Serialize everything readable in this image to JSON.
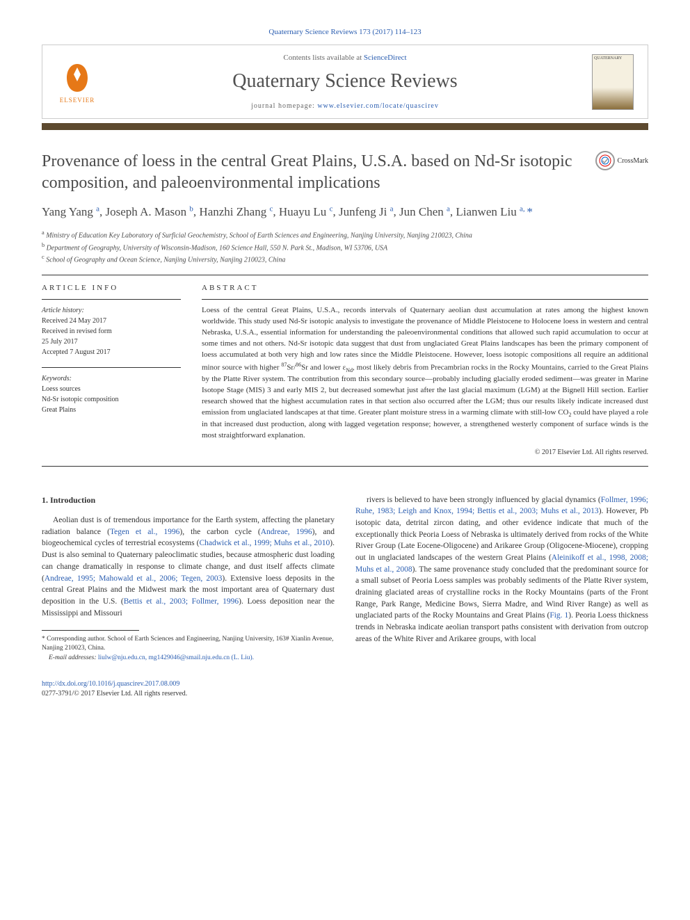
{
  "header": {
    "citation": "Quaternary Science Reviews 173 (2017) 114–123",
    "contents_prefix": "Contents lists available at ",
    "contents_link": "ScienceDirect",
    "journal_name": "Quaternary Science Reviews",
    "homepage_prefix": "journal homepage: ",
    "homepage_url": "www.elsevier.com/locate/quascirev",
    "publisher": "ELSEVIER",
    "cover_text": "QUATERNARY"
  },
  "colors": {
    "link": "#2a5db0",
    "bar": "#5d4a2f",
    "elsevier": "#e67817",
    "text": "#333333",
    "title_gray": "#4a4a4a"
  },
  "article": {
    "title": "Provenance of loess in the central Great Plains, U.S.A. based on Nd-Sr isotopic composition, and paleoenvironmental implications",
    "crossmark_label": "CrossMark",
    "authors_html": "Yang Yang <sup>a</sup>, Joseph A. Mason <sup>b</sup>, Hanzhi Zhang <sup>c</sup>, Huayu Lu <sup>c</sup>, Junfeng Ji <sup>a</sup>, Jun Chen <sup>a</sup>, Lianwen Liu <sup>a, </sup><span class='corr'>*</span>",
    "affiliations": [
      "a Ministry of Education Key Laboratory of Surficial Geochemistry, School of Earth Sciences and Engineering, Nanjing University, Nanjing 210023, China",
      "b Department of Geography, University of Wisconsin-Madison, 160 Science Hall, 550 N. Park St., Madison, WI 53706, USA",
      "c School of Geography and Ocean Science, Nanjing University, Nanjing 210023, China"
    ]
  },
  "info": {
    "heading": "ARTICLE INFO",
    "history_label": "Article history:",
    "history": [
      "Received 24 May 2017",
      "Received in revised form",
      "25 July 2017",
      "Accepted 7 August 2017"
    ],
    "keywords_label": "Keywords:",
    "keywords": [
      "Loess sources",
      "Nd-Sr isotopic composition",
      "Great Plains"
    ]
  },
  "abstract": {
    "heading": "ABSTRACT",
    "text": "Loess of the central Great Plains, U.S.A., records intervals of Quaternary aeolian dust accumulation at rates among the highest known worldwide. This study used Nd-Sr isotopic analysis to investigate the provenance of Middle Pleistocene to Holocene loess in western and central Nebraska, U.S.A., essential information for understanding the paleoenvironmental conditions that allowed such rapid accumulation to occur at some times and not others. Nd-Sr isotopic data suggest that dust from unglaciated Great Plains landscapes has been the primary component of loess accumulated at both very high and low rates since the Middle Pleistocene. However, loess isotopic compositions all require an additional minor source with higher 87Sr/86Sr and lower εNd, most likely debris from Precambrian rocks in the Rocky Mountains, carried to the Great Plains by the Platte River system. The contribution from this secondary source—probably including glacially eroded sediment—was greater in Marine Isotope Stage (MIS) 3 and early MIS 2, but decreased somewhat just after the last glacial maximum (LGM) at the Bignell Hill section. Earlier research showed that the highest accumulation rates in that section also occurred after the LGM; thus our results likely indicate increased dust emission from unglaciated landscapes at that time. Greater plant moisture stress in a warming climate with still-low CO2 could have played a role in that increased dust production, along with lagged vegetation response; however, a strengthened westerly component of surface winds is the most straightforward explanation.",
    "copyright": "© 2017 Elsevier Ltd. All rights reserved."
  },
  "body": {
    "section_number": "1.",
    "section_title": "Introduction",
    "col1_html": "Aeolian dust is of tremendous importance for the Earth system, affecting the planetary radiation balance (<a href='#'>Tegen et al., 1996</a>), the carbon cycle (<a href='#'>Andreae, 1996</a>), and biogeochemical cycles of terrestrial ecosystems (<a href='#'>Chadwick et al., 1999; Muhs et al., 2010</a>). Dust is also seminal to Quaternary paleoclimatic studies, because atmospheric dust loading can change dramatically in response to climate change, and dust itself affects climate (<a href='#'>Andreae, 1995; Mahowald et al., 2006; Tegen, 2003</a>). Extensive loess deposits in the central Great Plains and the Midwest mark the most important area of Quaternary dust deposition in the U.S. (<a href='#'>Bettis et al., 2003; Follmer, 1996</a>). Loess deposition near the Mississippi and Missouri",
    "col2_html": "rivers is believed to have been strongly influenced by glacial dynamics (<a href='#'>Follmer, 1996; Ruhe, 1983; Leigh and Knox, 1994; Bettis et al., 2003; Muhs et al., 2013</a>). However, Pb isotopic data, detrital zircon dating, and other evidence indicate that much of the exceptionally thick Peoria Loess of Nebraska is ultimately derived from rocks of the White River Group (Late Eocene-Oligocene) and Arikaree Group (Oligocene-Miocene), cropping out in unglaciated landscapes of the western Great Plains (<a href='#'>Aleinikoff et al., 1998, 2008; Muhs et al., 2008</a>). The same provenance study concluded that the predominant source for a small subset of Peoria Loess samples was probably sediments of the Platte River system, draining glaciated areas of crystalline rocks in the Rocky Mountains (parts of the Front Range, Park Range, Medicine Bows, Sierra Madre, and Wind River Range) as well as unglaciated parts of the Rocky Mountains and Great Plains (<a href='#'>Fig. 1</a>). Peoria Loess thickness trends in Nebraska indicate aeolian transport paths consistent with derivation from outcrop areas of the White River and Arikaree groups, with local"
  },
  "footnotes": {
    "corresponding": "* Corresponding author. School of Earth Sciences and Engineering, Nanjing University, 163# Xianlin Avenue, Nanjing 210023, China.",
    "email_label": "E-mail addresses:",
    "emails": "liulw@nju.edu.cn, mg1429046@smail.nju.edu.cn (L. Liu)."
  },
  "footer": {
    "doi": "http://dx.doi.org/10.1016/j.quascirev.2017.08.009",
    "issn_copyright": "0277-3791/© 2017 Elsevier Ltd. All rights reserved."
  }
}
